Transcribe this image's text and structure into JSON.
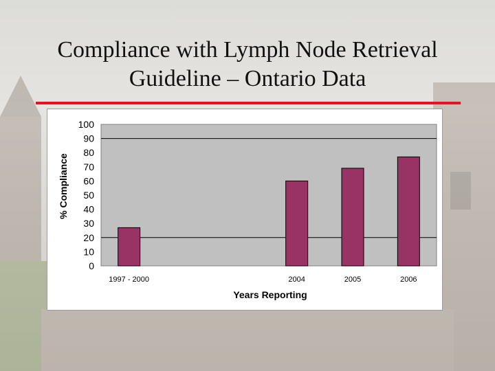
{
  "slide": {
    "title_line1": "Compliance with Lymph Node Retrieval",
    "title_line2": "Guideline – Ontario Data"
  },
  "colors": {
    "accent_rule": "#e8121c",
    "bar": "#993366",
    "plot_bg": "#c0c0c0"
  },
  "chart_data": {
    "type": "bar",
    "categories": [
      "1997 - 2000",
      "",
      "",
      "2004",
      "2005",
      "2006"
    ],
    "values": [
      27,
      null,
      null,
      60,
      69,
      77
    ],
    "xlabel": "Years Reporting",
    "ylabel": "% Compliance",
    "ylim": [
      0,
      100
    ],
    "yticks": [
      0,
      10,
      20,
      30,
      40,
      50,
      60,
      70,
      80,
      90,
      100
    ],
    "gridlines": [
      20,
      90
    ],
    "grid": true,
    "legend": "none"
  }
}
